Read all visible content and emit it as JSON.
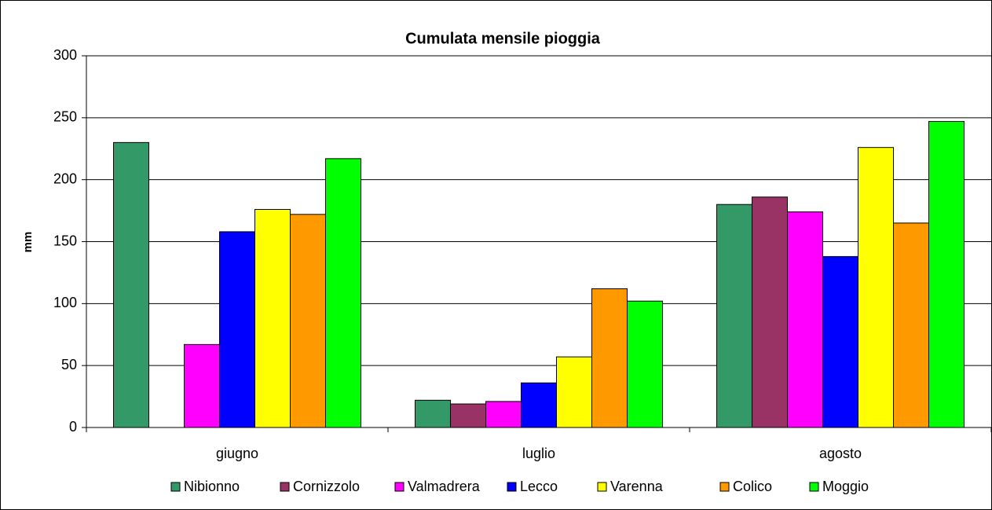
{
  "chart_data": {
    "type": "bar",
    "title": "Cumulata mensile pioggia",
    "y_label": "mm",
    "categories": [
      "giugno",
      "luglio",
      "agosto"
    ],
    "series": [
      {
        "name": "Nibionno",
        "color": "#339966",
        "values": [
          230,
          22,
          180
        ]
      },
      {
        "name": "Cornizzolo",
        "color": "#993366",
        "values": [
          null,
          19,
          186
        ]
      },
      {
        "name": "Valmadrera",
        "color": "#ff00ff",
        "values": [
          67,
          21,
          174
        ]
      },
      {
        "name": "Lecco",
        "color": "#0000ff",
        "values": [
          158,
          36,
          138
        ]
      },
      {
        "name": "Varenna",
        "color": "#ffff00",
        "values": [
          176,
          57,
          226
        ]
      },
      {
        "name": "Colico",
        "color": "#ff9900",
        "values": [
          172,
          112,
          165
        ]
      },
      {
        "name": "Moggio",
        "color": "#00ff00",
        "values": [
          217,
          102,
          247
        ]
      }
    ],
    "ylim": [
      0,
      300
    ],
    "yticks": [
      0,
      50,
      100,
      150,
      200,
      250,
      300
    ],
    "grid": true,
    "legend": "bottom"
  }
}
